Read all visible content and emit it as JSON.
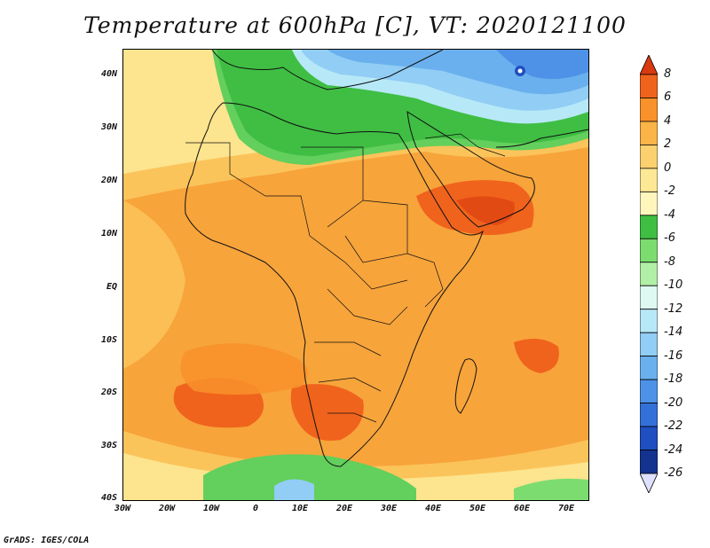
{
  "title": "Temperature at 600hPa [C], VT: 2020121100",
  "credit": "GrADS: IGES/COLA",
  "lat_labels": [
    "40N",
    "30N",
    "20N",
    "10N",
    "EQ",
    "10S",
    "20S",
    "30S",
    "40S"
  ],
  "lon_labels": [
    "30W",
    "20W",
    "10W",
    "0",
    "10E",
    "20E",
    "30E",
    "40E",
    "50E",
    "60E",
    "70E"
  ],
  "colorbar": {
    "labels": [
      "8",
      "6",
      "4",
      "2",
      "0",
      "-2",
      "-4",
      "-6",
      "-8",
      "-10",
      "-12",
      "-14",
      "-16",
      "-18",
      "-20",
      "-22",
      "-24",
      "-26"
    ],
    "colors": [
      "#d93a10",
      "#f0631c",
      "#f9922b",
      "#fbb447",
      "#fbd16f",
      "#fde896",
      "#fff6bd",
      "#3fbe43",
      "#7cdc6f",
      "#b2efa6",
      "#def8f2",
      "#b7e8f7",
      "#91cdf4",
      "#6ab0ee",
      "#4d92e6",
      "#3371d9",
      "#1f4fc0",
      "#14338f",
      "#0c1a6a"
    ]
  }
}
